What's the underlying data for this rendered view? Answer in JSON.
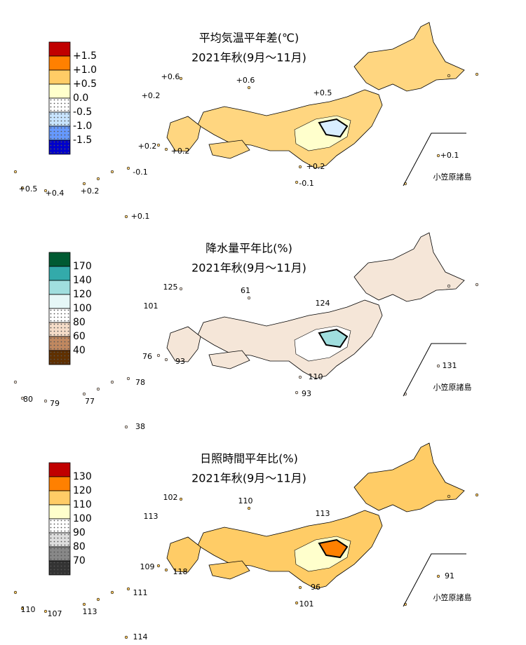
{
  "panels": [
    {
      "title": "平均気温平年差(℃)",
      "subtitle": "2021年秋(9月～11月)",
      "legend": {
        "labels": [
          "+1.5",
          "+1.0",
          "+0.5",
          "0.0",
          "-0.5",
          "-1.0",
          "-1.5"
        ],
        "colors": [
          "#c00000",
          "#ff8000",
          "#ffcc66",
          "#ffffcc",
          "#ffffff",
          "#c8e4ff",
          "#6699ff",
          "#0000cc"
        ],
        "dotted": [
          4,
          5,
          6,
          7
        ]
      },
      "map_colors": [
        "#ffd680",
        "#ffffcc",
        "#d9eeff"
      ],
      "annotations": [
        "+0.6",
        "+0.6",
        "+0.2",
        "+0.5",
        "+0.2",
        "+0.2",
        "-0.1",
        "+0.5",
        "+0.4",
        "+0.2",
        "+0.1",
        "+0.2",
        "-0.1",
        "+0.1"
      ],
      "bonin_label": "小笠原諸島"
    },
    {
      "title": "降水量平年比(%)",
      "subtitle": "2021年秋(9月～11月)",
      "legend": {
        "labels": [
          "170",
          "140",
          "120",
          "100",
          "80",
          "60",
          "40"
        ],
        "colors": [
          "#005a32",
          "#33aaaa",
          "#a0dede",
          "#e6f7f7",
          "#ffffff",
          "#f5dcc8",
          "#c08860",
          "#603000"
        ],
        "dotted": [
          4,
          5,
          6,
          7
        ]
      },
      "map_colors": [
        "#f5e6d8",
        "#ffffff",
        "#a0dede"
      ],
      "annotations": [
        "125",
        "61",
        "101",
        "124",
        "76",
        "93",
        "78",
        "80",
        "79",
        "77",
        "131",
        "110",
        "93",
        "38"
      ],
      "bonin_label": "小笠原諸島"
    },
    {
      "title": "日照時間平年比(%)",
      "subtitle": "2021年秋(9月～11月)",
      "legend": {
        "labels": [
          "130",
          "120",
          "110",
          "100",
          "90",
          "80",
          "70"
        ],
        "colors": [
          "#c00000",
          "#ff8000",
          "#ffcc66",
          "#ffffcc",
          "#ffffff",
          "#dddddd",
          "#888888",
          "#333333"
        ],
        "dotted": [
          4,
          5,
          6,
          7
        ]
      },
      "map_colors": [
        "#ffcc66",
        "#ffffcc",
        "#ff8000"
      ],
      "annotations": [
        "102",
        "110",
        "113",
        "113",
        "109",
        "118",
        "111",
        "110",
        "107",
        "113",
        "91",
        "96",
        "101",
        "114"
      ],
      "bonin_label": "小笠原諸島"
    }
  ]
}
